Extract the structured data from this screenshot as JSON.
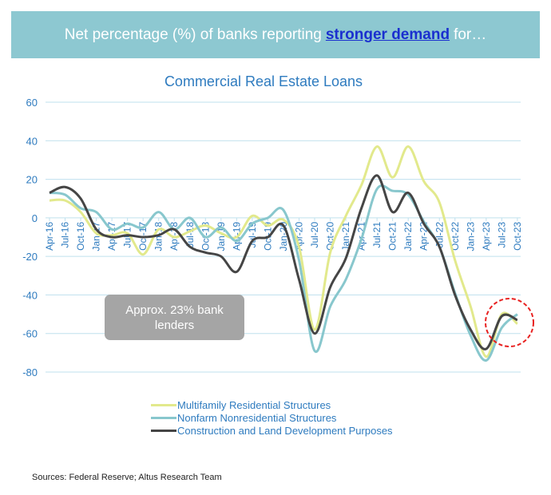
{
  "banner": {
    "prefix": "Net percentage (%) of banks reporting",
    "highlight": "stronger demand",
    "suffix": "for…"
  },
  "annotation": "Approx. 23% bank lenders",
  "source": "Sources: Federal Reserve; Altus Research Team",
  "chart_data": {
    "type": "line",
    "title": "Commercial Real Estate Loans",
    "xlabel": "",
    "ylabel": "",
    "ylim": [
      -80,
      60
    ],
    "yticks": [
      60,
      40,
      20,
      0,
      -20,
      -40,
      -60,
      -80
    ],
    "grid": true,
    "legend_position": "bottom",
    "categories": [
      "Apr-16",
      "Jul-16",
      "Oct-16",
      "Jan-17",
      "Apr-17",
      "Jul-17",
      "Oct-17",
      "Jan-18",
      "Apr-18",
      "Jul-18",
      "Oct-18",
      "Jan-19",
      "Apr-19",
      "Jul-19",
      "Oct-19",
      "Jan-20",
      "Apr-20",
      "Jul-20",
      "Oct-20",
      "Jan-21",
      "Apr-21",
      "Jul-21",
      "Oct-21",
      "Jan-22",
      "Apr-22",
      "Jul-22",
      "Oct-22",
      "Jan-23",
      "Apr-23",
      "Jul-23",
      "Oct-23"
    ],
    "series": [
      {
        "name": "Multifamily Residential Structures",
        "color": "#E2E98C",
        "values": [
          9,
          9,
          3,
          -8,
          -9,
          -8,
          -19,
          -6,
          -10,
          -7,
          -4,
          -8,
          -10,
          1,
          -4,
          -1,
          -15,
          -58,
          -18,
          1,
          17,
          37,
          21,
          37,
          19,
          8,
          -22,
          -46,
          -72,
          -50,
          -55
        ]
      },
      {
        "name": "Nonfarm Nonresidential Structures",
        "color": "#88C7CD",
        "values": [
          13,
          12,
          5,
          3,
          -6,
          -3,
          -5,
          3,
          -6,
          0,
          -10,
          -5,
          -12,
          -3,
          0,
          4,
          -22,
          -69,
          -46,
          -32,
          -11,
          15,
          14,
          12,
          -2,
          -15,
          -39,
          -61,
          -74,
          -57,
          -50
        ]
      },
      {
        "name": "Construction and Land Development Purposes",
        "color": "#454545",
        "values": [
          13,
          16,
          10,
          -6,
          -10,
          -9,
          -10,
          -9,
          -6,
          -15,
          -18,
          -20,
          -28,
          -12,
          -10,
          -4,
          -32,
          -60,
          -36,
          -21,
          5,
          22,
          3,
          13,
          -3,
          -15,
          -40,
          -58,
          -68,
          -51,
          -53
        ]
      }
    ],
    "highlight": {
      "shape": "dashed-circle",
      "color": "#E8201F",
      "around": [
        "Jul-23",
        "Oct-23"
      ]
    }
  }
}
